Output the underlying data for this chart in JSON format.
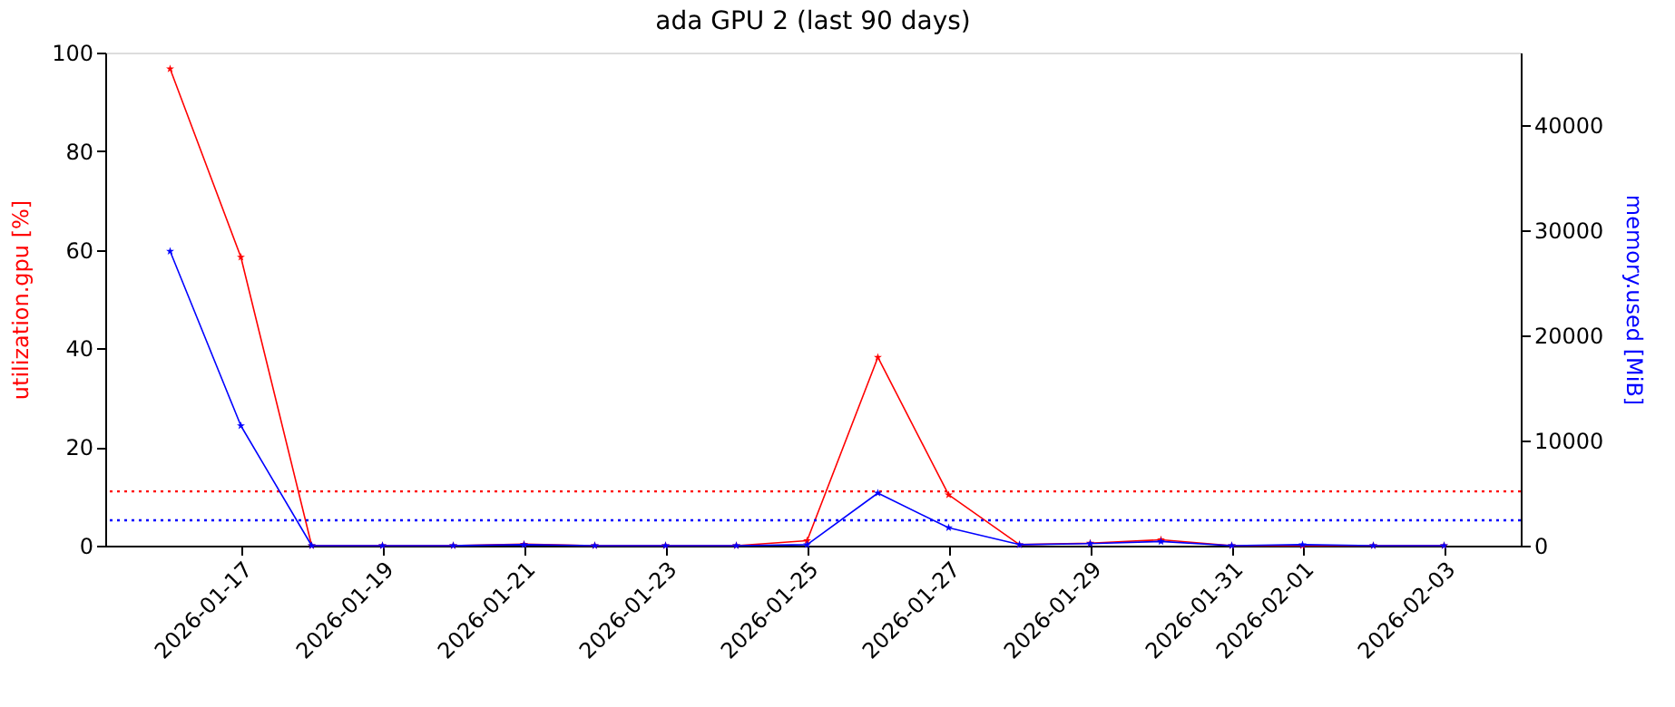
{
  "chart_data": {
    "type": "line",
    "title": "ada GPU 2 (last 90 days)",
    "ylabel": "utilization.gpu [%]",
    "y2label": "memory.used [MiB]",
    "x": [
      "2026-01-16",
      "2026-01-17",
      "2026-01-18",
      "2026-01-19",
      "2026-01-20",
      "2026-01-21",
      "2026-01-22",
      "2026-01-23",
      "2026-01-24",
      "2026-01-25",
      "2026-01-26",
      "2026-01-27",
      "2026-01-28",
      "2026-01-29",
      "2026-01-30",
      "2026-01-31",
      "2026-02-01",
      "2026-02-02",
      "2026-02-03"
    ],
    "series": [
      {
        "color": "#ff0000",
        "values": [
          96.7,
          58.5,
          0,
          0,
          0,
          0.3,
          0,
          0,
          0,
          1,
          38.2,
          10.3,
          0.2,
          0.5,
          1.2,
          0,
          0,
          0,
          0
        ]
      },
      {
        "color": "#0000ff",
        "axis": "y2",
        "values": [
          28000,
          11400,
          0,
          0,
          0,
          100,
          0,
          0,
          0,
          100,
          5000,
          1700,
          100,
          200,
          400,
          0,
          100,
          0,
          0
        ]
      }
    ],
    "xlim": [
      "2026-01-15T02:00",
      "2026-02-04T02:00"
    ],
    "xticks": [
      "2026-01-17",
      "2026-01-19",
      "2026-01-21",
      "2026-01-23",
      "2026-01-25",
      "2026-01-27",
      "2026-01-29",
      "2026-01-31",
      "2026-02-01",
      "2026-02-03"
    ],
    "ylim": [
      0,
      100
    ],
    "yticks": [
      0,
      20,
      40,
      60,
      80,
      100
    ],
    "y2lim": [
      0,
      46900
    ],
    "y2ticks": [
      0,
      10000,
      20000,
      30000,
      40000
    ],
    "ref_lines": [
      {
        "axis": "y",
        "value": 11.0,
        "color": "#ff0000",
        "line_style": "dotted"
      },
      {
        "axis": "y2",
        "value": 2410,
        "color": "#0000ff",
        "line_style": "dotted"
      }
    ],
    "marker": "star",
    "line_style": "solid",
    "grid": false
  }
}
